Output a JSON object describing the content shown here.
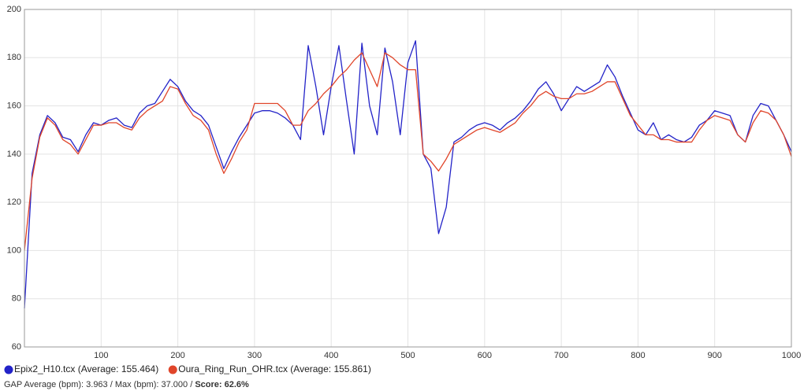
{
  "chart_data": {
    "type": "line",
    "x": [
      0,
      10,
      20,
      30,
      40,
      50,
      60,
      70,
      80,
      90,
      100,
      110,
      120,
      130,
      140,
      150,
      160,
      170,
      180,
      190,
      200,
      210,
      220,
      230,
      240,
      250,
      260,
      270,
      280,
      290,
      300,
      310,
      320,
      330,
      340,
      350,
      360,
      370,
      380,
      390,
      400,
      410,
      420,
      430,
      440,
      450,
      460,
      470,
      480,
      490,
      500,
      510,
      520,
      530,
      540,
      550,
      560,
      570,
      580,
      590,
      600,
      610,
      620,
      630,
      640,
      650,
      660,
      670,
      680,
      690,
      700,
      710,
      720,
      730,
      740,
      750,
      760,
      770,
      780,
      790,
      800,
      810,
      820,
      830,
      840,
      850,
      860,
      870,
      880,
      890,
      900,
      910,
      920,
      930,
      940,
      950,
      960,
      970,
      980,
      990,
      1000
    ],
    "series": [
      {
        "name": "Epix2_H10.tcx (Average: 155.464)",
        "color": "#2323c8",
        "values": [
          76,
          132,
          148,
          156,
          153,
          147,
          146,
          141,
          148,
          153,
          152,
          154,
          155,
          152,
          151,
          157,
          160,
          161,
          166,
          171,
          168,
          162,
          158,
          156,
          152,
          143,
          134,
          141,
          147,
          152,
          157,
          158,
          158,
          157,
          155,
          152,
          146,
          185,
          168,
          148,
          168,
          185,
          162,
          140,
          186,
          160,
          148,
          184,
          170,
          148,
          178,
          187,
          140,
          134,
          107,
          118,
          145,
          147,
          150,
          152,
          153,
          152,
          150,
          153,
          155,
          158,
          162,
          167,
          170,
          165,
          158,
          163,
          168,
          166,
          168,
          170,
          177,
          172,
          164,
          157,
          150,
          148,
          153,
          146,
          148,
          146,
          145,
          147,
          152,
          154,
          158,
          157,
          156,
          148,
          145,
          156,
          161,
          160,
          154,
          148,
          141
        ]
      },
      {
        "name": "Oura_Ring_Run_OHR.tcx (Average: 155.861)",
        "color": "#e0452a",
        "values": [
          100,
          130,
          147,
          155,
          152,
          146,
          144,
          140,
          146,
          152,
          152,
          153,
          153,
          151,
          150,
          155,
          158,
          160,
          162,
          168,
          167,
          161,
          156,
          154,
          150,
          140,
          132,
          138,
          145,
          150,
          161,
          161,
          161,
          161,
          158,
          152,
          152,
          158,
          161,
          165,
          168,
          172,
          175,
          179,
          182,
          175,
          168,
          182,
          180,
          177,
          175,
          175,
          140,
          137,
          133,
          138,
          144,
          146,
          148,
          150,
          151,
          150,
          149,
          151,
          153,
          157,
          160,
          164,
          166,
          164,
          163,
          163,
          165,
          165,
          166,
          168,
          170,
          170,
          163,
          156,
          152,
          148,
          148,
          146,
          146,
          145,
          145,
          145,
          150,
          154,
          156,
          155,
          154,
          148,
          145,
          153,
          158,
          157,
          154,
          148,
          139
        ]
      }
    ],
    "xlim": [
      0,
      1000
    ],
    "xticks": [
      100,
      200,
      300,
      400,
      500,
      600,
      700,
      800,
      900,
      1000
    ],
    "ylim": [
      60,
      200
    ],
    "yticks": [
      60,
      80,
      100,
      120,
      140,
      160,
      180,
      200
    ],
    "grid": true,
    "stats": "GAP Average (bpm): 3.963 / Max (bpm): 37.000 /",
    "score": "Score: 62.6%"
  }
}
